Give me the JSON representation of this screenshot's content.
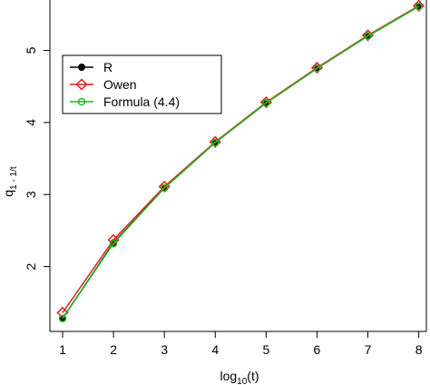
{
  "chart_data": {
    "type": "line",
    "xlabel": "log10(t)",
    "ylabel": "q1-1/t",
    "xlim": [
      0.75,
      8.15
    ],
    "ylim": [
      1.1,
      5.7
    ],
    "x_ticks": [
      1,
      2,
      3,
      4,
      5,
      6,
      7,
      8
    ],
    "y_ticks": [
      2,
      3,
      4,
      5
    ],
    "legend_position": "top-left",
    "series": [
      {
        "name": "R",
        "color": "#000000",
        "marker": "filled-circle",
        "x": [
          1,
          2,
          3,
          4,
          5,
          6,
          7,
          8
        ],
        "y": [
          1.28,
          2.33,
          3.09,
          3.72,
          4.27,
          4.75,
          5.2,
          5.61
        ]
      },
      {
        "name": "Owen",
        "color": "#e41a1c",
        "marker": "open-diamond",
        "x": [
          1,
          2,
          3,
          4,
          5,
          6,
          7,
          8
        ],
        "y": [
          1.36,
          2.37,
          3.11,
          3.73,
          4.28,
          4.76,
          5.21,
          5.62
        ]
      },
      {
        "name": "Formula (4.4)",
        "color": "#22bb22",
        "marker": "open-circle",
        "x": [
          1,
          2,
          3,
          4,
          5,
          6,
          7,
          8
        ],
        "y": [
          1.28,
          2.32,
          3.09,
          3.72,
          4.27,
          4.75,
          5.2,
          5.61
        ]
      }
    ]
  }
}
